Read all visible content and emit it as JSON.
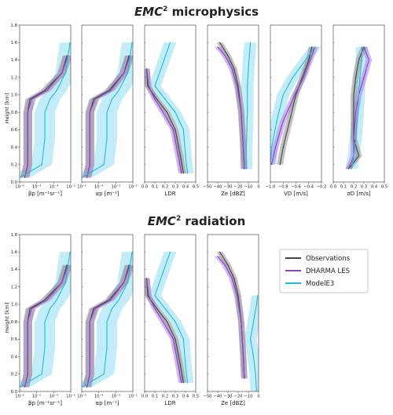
{
  "sections": [
    {
      "title_emc": "EMC",
      "title_sup": "2",
      "title_rest": " microphysics",
      "ylabel": "Height [km]"
    },
    {
      "title_emc": "EMC",
      "title_sup": "2",
      "title_rest": " radiation",
      "ylabel": "Height [km]"
    }
  ],
  "legend": {
    "entries": [
      {
        "label": "Observations",
        "color": "#444444"
      },
      {
        "label": "DHARMA LES",
        "color": "#8a3fd1"
      },
      {
        "label": "ModelE3",
        "color": "#1ebcd8"
      }
    ]
  },
  "colors": {
    "obs": "#444444",
    "obs_band": "#9a9a9a",
    "les": "#8a3fd1",
    "les_band": "#b48be3",
    "model": "#1ebcd8",
    "model_band": "#8fdcf0"
  },
  "chart_data": [
    {
      "type": "line",
      "panel": "microphysics-beta",
      "xlabel": "βp [m⁻¹sr⁻¹]",
      "x_scale": "log",
      "xlim": [
        1e-06,
        0.001
      ],
      "x_ticks": [
        "10⁻⁶",
        "10⁻⁵",
        "10⁻⁴",
        "10⁻³"
      ],
      "y_ticks": [
        "0.0",
        "0.2",
        "0.4",
        "0.6",
        "0.8",
        "1.0",
        "1.2",
        "1.4",
        "1.6",
        "1.8"
      ],
      "ylim": [
        0,
        1.8
      ],
      "series": [
        {
          "name": "Observations",
          "x": [
            2e-06,
            3e-06,
            3e-06,
            3e-06,
            4e-06,
            3e-05,
            0.0003,
            0.0006
          ],
          "y": [
            0.05,
            0.2,
            0.5,
            0.8,
            0.95,
            1.05,
            1.25,
            1.45
          ]
        },
        {
          "name": "DHARMA LES",
          "x": [
            2e-06,
            3e-06,
            3e-06,
            3e-06,
            5e-06,
            4e-05,
            0.0003,
            0.0007
          ],
          "y": [
            0.05,
            0.2,
            0.5,
            0.8,
            0.95,
            1.05,
            1.25,
            1.45
          ]
        },
        {
          "name": "ModelE3",
          "x": [
            1e-06,
            2e-05,
            3e-05,
            3e-05,
            6e-05,
            0.00015,
            0.0005,
            0.0009
          ],
          "y": [
            0.05,
            0.2,
            0.5,
            0.8,
            0.95,
            1.05,
            1.25,
            1.6
          ]
        }
      ]
    },
    {
      "type": "line",
      "panel": "microphysics-alpha",
      "xlabel": "αp [m⁻¹]",
      "x_scale": "log",
      "xlim": [
        1e-05,
        0.01
      ],
      "x_ticks": [
        "10⁻⁵",
        "10⁻⁴",
        "10⁻³",
        "10⁻²"
      ],
      "ylim": [
        0,
        1.8
      ],
      "series": [
        {
          "name": "Observations",
          "x": [
            2e-05,
            3e-05,
            3e-05,
            3e-05,
            5e-05,
            0.0004,
            0.003,
            0.006
          ],
          "y": [
            0.05,
            0.2,
            0.5,
            0.8,
            0.95,
            1.05,
            1.25,
            1.45
          ]
        },
        {
          "name": "DHARMA LES",
          "x": [
            2e-05,
            3e-05,
            3e-05,
            3e-05,
            6e-05,
            0.0005,
            0.003,
            0.007
          ],
          "y": [
            0.05,
            0.2,
            0.5,
            0.8,
            0.95,
            1.05,
            1.25,
            1.45
          ]
        },
        {
          "name": "ModelE3",
          "x": [
            1e-05,
            0.0002,
            0.0003,
            0.0003,
            0.0006,
            0.0015,
            0.005,
            0.009
          ],
          "y": [
            0.05,
            0.2,
            0.5,
            0.8,
            0.95,
            1.05,
            1.25,
            1.6
          ]
        }
      ]
    },
    {
      "type": "line",
      "panel": "microphysics-ldr",
      "xlabel": "LDR",
      "xlim": [
        0,
        0.5
      ],
      "x_ticks": [
        "0.0",
        "0.1",
        "0.2",
        "0.3",
        "0.4",
        "0.5"
      ],
      "ylim": [
        0,
        1.8
      ],
      "series": [
        {
          "name": "Observations",
          "x": [
            0.38,
            0.35,
            0.3,
            0.22,
            0.12,
            0.03,
            0.02
          ],
          "y": [
            0.1,
            0.3,
            0.6,
            0.8,
            0.95,
            1.1,
            1.3
          ]
        },
        {
          "name": "DHARMA LES",
          "x": [
            0.36,
            0.33,
            0.28,
            0.18,
            0.1,
            0.04,
            0.02
          ],
          "y": [
            0.1,
            0.3,
            0.6,
            0.8,
            0.95,
            1.1,
            1.3
          ]
        },
        {
          "name": "ModelE3",
          "x": [
            0.42,
            0.4,
            0.38,
            0.3,
            0.2,
            0.1,
            0.25
          ],
          "y": [
            0.1,
            0.3,
            0.6,
            0.8,
            0.95,
            1.1,
            1.6
          ]
        }
      ]
    },
    {
      "type": "line",
      "panel": "microphysics-ze",
      "xlabel": "Ze [dBZ]",
      "xlim": [
        -50,
        0
      ],
      "x_ticks": [
        "−50",
        "−40",
        "−30",
        "−20",
        "−10",
        "0"
      ],
      "ylim": [
        0,
        1.8
      ],
      "series": [
        {
          "name": "Observations",
          "x": [
            -14,
            -15,
            -17,
            -20,
            -24,
            -30,
            -38
          ],
          "y": [
            0.15,
            0.4,
            0.8,
            1.1,
            1.3,
            1.45,
            1.6
          ]
        },
        {
          "name": "DHARMA LES",
          "x": [
            -14,
            -15,
            -17,
            -21,
            -26,
            -33,
            -40
          ],
          "y": [
            0.15,
            0.4,
            0.8,
            1.1,
            1.3,
            1.45,
            1.55
          ]
        },
        {
          "name": "ModelE3",
          "x": [
            -12,
            -12,
            -11,
            -11,
            -10,
            -9,
            -8
          ],
          "y": [
            0.15,
            0.4,
            0.8,
            1.1,
            1.3,
            1.45,
            1.6
          ]
        }
      ]
    },
    {
      "type": "line",
      "panel": "microphysics-vd",
      "xlabel": "VD [m/s]",
      "xlim": [
        -1.0,
        -0.2
      ],
      "x_ticks": [
        "−1.0",
        "−0.8",
        "−0.6",
        "−0.4",
        "−0.2"
      ],
      "ylim": [
        0,
        1.8
      ],
      "series": [
        {
          "name": "Observations",
          "x": [
            -0.85,
            -0.8,
            -0.7,
            -0.6,
            -0.5,
            -0.4,
            -0.35
          ],
          "y": [
            0.2,
            0.4,
            0.7,
            1.0,
            1.2,
            1.4,
            1.55
          ]
        },
        {
          "name": "DHARMA LES",
          "x": [
            -0.98,
            -0.92,
            -0.8,
            -0.62,
            -0.48,
            -0.38,
            -0.3
          ],
          "y": [
            0.2,
            0.4,
            0.7,
            1.0,
            1.2,
            1.4,
            1.55
          ]
        },
        {
          "name": "ModelE3",
          "x": [
            -1.0,
            -0.98,
            -0.9,
            -0.8,
            -0.65,
            -0.45,
            -0.3
          ],
          "y": [
            0.2,
            0.4,
            0.7,
            1.0,
            1.2,
            1.4,
            1.55
          ]
        }
      ]
    },
    {
      "type": "line",
      "panel": "microphysics-sigma",
      "xlabel": "σD [m/s]",
      "xlim": [
        0,
        0.5
      ],
      "x_ticks": [
        "0.0",
        "0.1",
        "0.2",
        "0.3",
        "0.4",
        "0.5"
      ],
      "ylim": [
        0,
        1.8
      ],
      "series": [
        {
          "name": "Observations",
          "x": [
            0.15,
            0.25,
            0.2,
            0.2,
            0.2,
            0.22,
            0.25,
            0.3
          ],
          "y": [
            0.15,
            0.3,
            0.5,
            0.8,
            1.0,
            1.2,
            1.4,
            1.55
          ]
        },
        {
          "name": "DHARMA LES",
          "x": [
            0.15,
            0.2,
            0.2,
            0.22,
            0.25,
            0.3,
            0.35,
            0.3
          ],
          "y": [
            0.15,
            0.3,
            0.5,
            0.8,
            1.0,
            1.2,
            1.4,
            1.55
          ]
        },
        {
          "name": "ModelE3",
          "x": [
            0.18,
            0.2,
            0.22,
            0.24,
            0.25,
            0.26,
            0.28,
            0.28
          ],
          "y": [
            0.15,
            0.3,
            0.5,
            0.8,
            1.0,
            1.2,
            1.4,
            1.55
          ]
        }
      ]
    },
    {
      "type": "line",
      "panel": "radiation-beta",
      "xlabel": "βp [m⁻¹sr⁻¹]",
      "x_scale": "log",
      "xlim": [
        1e-06,
        0.001
      ],
      "x_ticks": [
        "10⁻⁶",
        "10⁻⁵",
        "10⁻⁴",
        "10⁻³"
      ],
      "y_ticks": [
        "0.0",
        "0.2",
        "0.4",
        "0.6",
        "0.8",
        "1.0",
        "1.2",
        "1.4",
        "1.6",
        "1.8"
      ],
      "ylim": [
        0,
        1.8
      ],
      "series": [
        {
          "name": "Observations",
          "x": [
            2e-06,
            3e-06,
            3e-06,
            3e-06,
            4e-06,
            3e-05,
            0.0003,
            0.0006
          ],
          "y": [
            0.05,
            0.2,
            0.5,
            0.8,
            0.95,
            1.05,
            1.25,
            1.45
          ]
        },
        {
          "name": "DHARMA LES",
          "x": [
            2e-06,
            3e-06,
            3e-06,
            3e-06,
            5e-06,
            4e-05,
            0.0003,
            0.0007
          ],
          "y": [
            0.05,
            0.2,
            0.5,
            0.8,
            0.95,
            1.05,
            1.25,
            1.45
          ]
        },
        {
          "name": "ModelE3",
          "x": [
            1e-06,
            2e-05,
            3e-05,
            3e-05,
            6e-05,
            0.00015,
            0.0005,
            0.0009
          ],
          "y": [
            0.05,
            0.2,
            0.5,
            0.8,
            0.95,
            1.05,
            1.25,
            1.6
          ]
        }
      ]
    },
    {
      "type": "line",
      "panel": "radiation-alpha",
      "xlabel": "αp [m⁻¹]",
      "x_scale": "log",
      "xlim": [
        1e-05,
        0.01
      ],
      "x_ticks": [
        "10⁻⁵",
        "10⁻⁴",
        "10⁻³",
        "10⁻²"
      ],
      "ylim": [
        0,
        1.8
      ],
      "series": [
        {
          "name": "Observations",
          "x": [
            2e-05,
            3e-05,
            3e-05,
            3e-05,
            5e-05,
            0.0004,
            0.003,
            0.006
          ],
          "y": [
            0.05,
            0.2,
            0.5,
            0.8,
            0.95,
            1.05,
            1.25,
            1.45
          ]
        },
        {
          "name": "DHARMA LES",
          "x": [
            2e-05,
            3e-05,
            3e-05,
            3e-05,
            6e-05,
            0.0005,
            0.003,
            0.007
          ],
          "y": [
            0.05,
            0.2,
            0.5,
            0.8,
            0.95,
            1.05,
            1.25,
            1.45
          ]
        },
        {
          "name": "ModelE3",
          "x": [
            1e-05,
            0.0002,
            0.0003,
            0.0003,
            0.0006,
            0.0015,
            0.005,
            0.009
          ],
          "y": [
            0.05,
            0.2,
            0.5,
            0.8,
            0.95,
            1.05,
            1.25,
            1.6
          ]
        }
      ]
    },
    {
      "type": "line",
      "panel": "radiation-ldr",
      "xlabel": "LDR",
      "xlim": [
        0,
        0.5
      ],
      "x_ticks": [
        "0.0",
        "0.1",
        "0.2",
        "0.3",
        "0.4",
        "0.5"
      ],
      "ylim": [
        0,
        1.8
      ],
      "series": [
        {
          "name": "Observations",
          "x": [
            0.38,
            0.35,
            0.3,
            0.22,
            0.12,
            0.03,
            0.02
          ],
          "y": [
            0.1,
            0.3,
            0.6,
            0.8,
            0.95,
            1.1,
            1.3
          ]
        },
        {
          "name": "DHARMA LES",
          "x": [
            0.36,
            0.33,
            0.28,
            0.18,
            0.1,
            0.04,
            0.02
          ],
          "y": [
            0.1,
            0.3,
            0.6,
            0.8,
            0.95,
            1.1,
            1.3
          ]
        },
        {
          "name": "ModelE3",
          "x": [
            0.42,
            0.4,
            0.38,
            0.3,
            0.2,
            0.1,
            0.25
          ],
          "y": [
            0.1,
            0.3,
            0.6,
            0.8,
            0.95,
            1.1,
            1.6
          ]
        }
      ]
    },
    {
      "type": "line",
      "panel": "radiation-ze",
      "xlabel": "Ze [dBZ]",
      "xlim": [
        -50,
        0
      ],
      "x_ticks": [
        "−50",
        "−40",
        "−30",
        "−20",
        "−10",
        "0"
      ],
      "ylim": [
        0,
        1.8
      ],
      "series": [
        {
          "name": "Observations",
          "x": [
            -14,
            -15,
            -17,
            -20,
            -24,
            -30,
            -38
          ],
          "y": [
            0.15,
            0.4,
            0.8,
            1.1,
            1.3,
            1.45,
            1.6
          ]
        },
        {
          "name": "DHARMA LES",
          "x": [
            -14,
            -15,
            -17,
            -21,
            -26,
            -33,
            -40
          ],
          "y": [
            0.15,
            0.4,
            0.8,
            1.1,
            1.3,
            1.45,
            1.55
          ]
        },
        {
          "name": "ModelE3",
          "x": [
            -2,
            -3,
            -5,
            -8,
            -5,
            -2,
            -1
          ],
          "y": [
            0.0,
            0.2,
            0.4,
            0.6,
            0.8,
            1.0,
            1.1
          ]
        }
      ]
    }
  ]
}
